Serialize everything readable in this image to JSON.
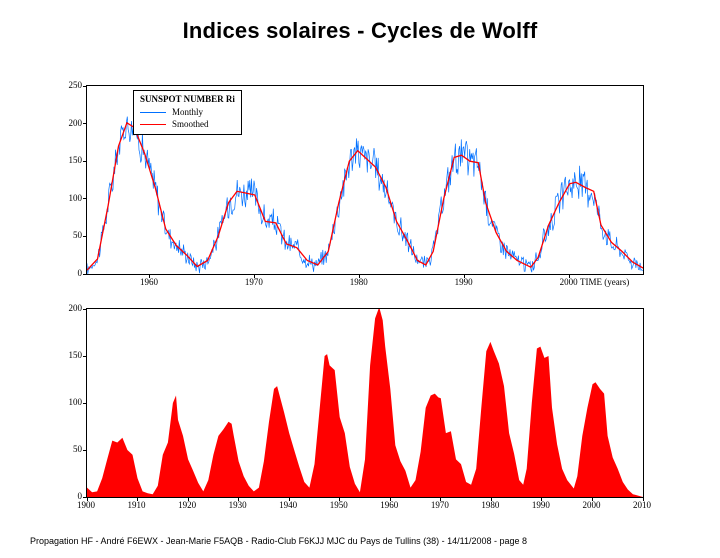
{
  "title": "Indices solaires - Cycles de Wolff",
  "footer": "Propagation HF - André F6EWX - Jean-Marie F5AQB - Radio-Club F6KJJ MJC du Pays de Tullins (38) - 14/11/2008 -  page 8",
  "top_chart": {
    "type": "line",
    "legend_title": "SUNSPOT NUMBER Ri",
    "legend_items": [
      {
        "label": "Monthly",
        "color": "#0070ff"
      },
      {
        "label": "Smoothed",
        "color": "#ff0000"
      }
    ],
    "x_axis_title": "TIME  (years)",
    "xlim": [
      1954,
      2007
    ],
    "xtick_step": 10,
    "xtick_start": 1960,
    "ylim": [
      0,
      250
    ],
    "ytick_step": 50,
    "background_color": "#ffffff",
    "line_width_monthly": 0.7,
    "line_width_smoothed": 1.3,
    "monthly_color": "#0070ff",
    "smoothed_color": "#ff0000",
    "smoothed_series": [
      {
        "x": 1954.0,
        "y": 5
      },
      {
        "x": 1955.0,
        "y": 20
      },
      {
        "x": 1956.0,
        "y": 90
      },
      {
        "x": 1957.0,
        "y": 170
      },
      {
        "x": 1957.8,
        "y": 201
      },
      {
        "x": 1958.5,
        "y": 195
      },
      {
        "x": 1959.5,
        "y": 160
      },
      {
        "x": 1960.5,
        "y": 115
      },
      {
        "x": 1961.5,
        "y": 60
      },
      {
        "x": 1962.5,
        "y": 38
      },
      {
        "x": 1963.5,
        "y": 25
      },
      {
        "x": 1964.5,
        "y": 10
      },
      {
        "x": 1965.5,
        "y": 18
      },
      {
        "x": 1966.5,
        "y": 50
      },
      {
        "x": 1967.5,
        "y": 95
      },
      {
        "x": 1968.3,
        "y": 110
      },
      {
        "x": 1969.0,
        "y": 108
      },
      {
        "x": 1970.0,
        "y": 105
      },
      {
        "x": 1971.0,
        "y": 70
      },
      {
        "x": 1972.0,
        "y": 68
      },
      {
        "x": 1973.0,
        "y": 40
      },
      {
        "x": 1974.0,
        "y": 35
      },
      {
        "x": 1975.0,
        "y": 18
      },
      {
        "x": 1976.0,
        "y": 12
      },
      {
        "x": 1977.0,
        "y": 30
      },
      {
        "x": 1978.0,
        "y": 95
      },
      {
        "x": 1979.0,
        "y": 150
      },
      {
        "x": 1979.8,
        "y": 164
      },
      {
        "x": 1980.5,
        "y": 155
      },
      {
        "x": 1981.5,
        "y": 142
      },
      {
        "x": 1982.5,
        "y": 115
      },
      {
        "x": 1983.5,
        "y": 70
      },
      {
        "x": 1984.5,
        "y": 45
      },
      {
        "x": 1985.5,
        "y": 18
      },
      {
        "x": 1986.3,
        "y": 12
      },
      {
        "x": 1987.0,
        "y": 30
      },
      {
        "x": 1988.0,
        "y": 100
      },
      {
        "x": 1989.0,
        "y": 155
      },
      {
        "x": 1989.7,
        "y": 158
      },
      {
        "x": 1990.5,
        "y": 150
      },
      {
        "x": 1991.3,
        "y": 148
      },
      {
        "x": 1992.0,
        "y": 95
      },
      {
        "x": 1993.0,
        "y": 55
      },
      {
        "x": 1994.0,
        "y": 30
      },
      {
        "x": 1995.0,
        "y": 18
      },
      {
        "x": 1996.3,
        "y": 9
      },
      {
        "x": 1997.0,
        "y": 22
      },
      {
        "x": 1998.0,
        "y": 65
      },
      {
        "x": 1999.0,
        "y": 95
      },
      {
        "x": 2000.0,
        "y": 120
      },
      {
        "x": 2000.6,
        "y": 122
      },
      {
        "x": 2001.5,
        "y": 115
      },
      {
        "x": 2002.3,
        "y": 110
      },
      {
        "x": 2003.0,
        "y": 65
      },
      {
        "x": 2004.0,
        "y": 42
      },
      {
        "x": 2005.0,
        "y": 30
      },
      {
        "x": 2006.0,
        "y": 16
      },
      {
        "x": 2007.0,
        "y": 8
      }
    ],
    "monthly_noise_amp": 32
  },
  "bottom_chart": {
    "type": "area",
    "fill_color": "#ff0000",
    "xlim": [
      1900,
      2010
    ],
    "xtick_step": 10,
    "ylim": [
      0,
      200
    ],
    "ytick_step": 50,
    "background_color": "#ffffff",
    "series": [
      {
        "x": 1900,
        "y": 10
      },
      {
        "x": 1901,
        "y": 5
      },
      {
        "x": 1902,
        "y": 6
      },
      {
        "x": 1903,
        "y": 20
      },
      {
        "x": 1904,
        "y": 40
      },
      {
        "x": 1905,
        "y": 60
      },
      {
        "x": 1906,
        "y": 58
      },
      {
        "x": 1907,
        "y": 63
      },
      {
        "x": 1908,
        "y": 50
      },
      {
        "x": 1909,
        "y": 45
      },
      {
        "x": 1910,
        "y": 20
      },
      {
        "x": 1911,
        "y": 6
      },
      {
        "x": 1912,
        "y": 4
      },
      {
        "x": 1913,
        "y": 3
      },
      {
        "x": 1914,
        "y": 12
      },
      {
        "x": 1915,
        "y": 45
      },
      {
        "x": 1916,
        "y": 58
      },
      {
        "x": 1917,
        "y": 100
      },
      {
        "x": 1917.6,
        "y": 108
      },
      {
        "x": 1918,
        "y": 82
      },
      {
        "x": 1919,
        "y": 65
      },
      {
        "x": 1920,
        "y": 40
      },
      {
        "x": 1921,
        "y": 28
      },
      {
        "x": 1922,
        "y": 15
      },
      {
        "x": 1923,
        "y": 6
      },
      {
        "x": 1924,
        "y": 18
      },
      {
        "x": 1925,
        "y": 45
      },
      {
        "x": 1926,
        "y": 65
      },
      {
        "x": 1927,
        "y": 72
      },
      {
        "x": 1928,
        "y": 80
      },
      {
        "x": 1928.6,
        "y": 78
      },
      {
        "x": 1929,
        "y": 66
      },
      {
        "x": 1930,
        "y": 38
      },
      {
        "x": 1931,
        "y": 22
      },
      {
        "x": 1932,
        "y": 12
      },
      {
        "x": 1933,
        "y": 6
      },
      {
        "x": 1934,
        "y": 10
      },
      {
        "x": 1935,
        "y": 38
      },
      {
        "x": 1936,
        "y": 80
      },
      {
        "x": 1937,
        "y": 115
      },
      {
        "x": 1937.6,
        "y": 118
      },
      {
        "x": 1938,
        "y": 110
      },
      {
        "x": 1939,
        "y": 90
      },
      {
        "x": 1940,
        "y": 68
      },
      {
        "x": 1941,
        "y": 50
      },
      {
        "x": 1942,
        "y": 32
      },
      {
        "x": 1943,
        "y": 16
      },
      {
        "x": 1944,
        "y": 10
      },
      {
        "x": 1945,
        "y": 35
      },
      {
        "x": 1946,
        "y": 92
      },
      {
        "x": 1947,
        "y": 150
      },
      {
        "x": 1947.5,
        "y": 152
      },
      {
        "x": 1948,
        "y": 140
      },
      {
        "x": 1949,
        "y": 135
      },
      {
        "x": 1950,
        "y": 85
      },
      {
        "x": 1951,
        "y": 68
      },
      {
        "x": 1952,
        "y": 32
      },
      {
        "x": 1953,
        "y": 14
      },
      {
        "x": 1954,
        "y": 5
      },
      {
        "x": 1955,
        "y": 40
      },
      {
        "x": 1956,
        "y": 140
      },
      {
        "x": 1957,
        "y": 190
      },
      {
        "x": 1957.8,
        "y": 202
      },
      {
        "x": 1958.5,
        "y": 188
      },
      {
        "x": 1959,
        "y": 160
      },
      {
        "x": 1960,
        "y": 115
      },
      {
        "x": 1961,
        "y": 55
      },
      {
        "x": 1962,
        "y": 38
      },
      {
        "x": 1963,
        "y": 28
      },
      {
        "x": 1964,
        "y": 10
      },
      {
        "x": 1965,
        "y": 18
      },
      {
        "x": 1966,
        "y": 48
      },
      {
        "x": 1967,
        "y": 95
      },
      {
        "x": 1968,
        "y": 108
      },
      {
        "x": 1968.8,
        "y": 110
      },
      {
        "x": 1969.5,
        "y": 106
      },
      {
        "x": 1970,
        "y": 105
      },
      {
        "x": 1971,
        "y": 68
      },
      {
        "x": 1972,
        "y": 70
      },
      {
        "x": 1973,
        "y": 40
      },
      {
        "x": 1974,
        "y": 35
      },
      {
        "x": 1975,
        "y": 16
      },
      {
        "x": 1976,
        "y": 13
      },
      {
        "x": 1977,
        "y": 30
      },
      {
        "x": 1978,
        "y": 95
      },
      {
        "x": 1979,
        "y": 155
      },
      {
        "x": 1979.8,
        "y": 165
      },
      {
        "x": 1980.5,
        "y": 155
      },
      {
        "x": 1981.5,
        "y": 142
      },
      {
        "x": 1982.5,
        "y": 118
      },
      {
        "x": 1983.5,
        "y": 68
      },
      {
        "x": 1984.5,
        "y": 46
      },
      {
        "x": 1985.5,
        "y": 18
      },
      {
        "x": 1986.3,
        "y": 13
      },
      {
        "x": 1987,
        "y": 30
      },
      {
        "x": 1988,
        "y": 100
      },
      {
        "x": 1989,
        "y": 158
      },
      {
        "x": 1989.7,
        "y": 160
      },
      {
        "x": 1990.5,
        "y": 148
      },
      {
        "x": 1991.3,
        "y": 150
      },
      {
        "x": 1992,
        "y": 95
      },
      {
        "x": 1993,
        "y": 56
      },
      {
        "x": 1994,
        "y": 30
      },
      {
        "x": 1995,
        "y": 18
      },
      {
        "x": 1996.3,
        "y": 9
      },
      {
        "x": 1997,
        "y": 22
      },
      {
        "x": 1998,
        "y": 65
      },
      {
        "x": 1999,
        "y": 95
      },
      {
        "x": 2000,
        "y": 120
      },
      {
        "x": 2000.6,
        "y": 122
      },
      {
        "x": 2001.5,
        "y": 115
      },
      {
        "x": 2002.3,
        "y": 110
      },
      {
        "x": 2003,
        "y": 65
      },
      {
        "x": 2004,
        "y": 42
      },
      {
        "x": 2005,
        "y": 30
      },
      {
        "x": 2006,
        "y": 16
      },
      {
        "x": 2007,
        "y": 8
      },
      {
        "x": 2008,
        "y": 3
      },
      {
        "x": 2010,
        "y": 0
      }
    ]
  }
}
